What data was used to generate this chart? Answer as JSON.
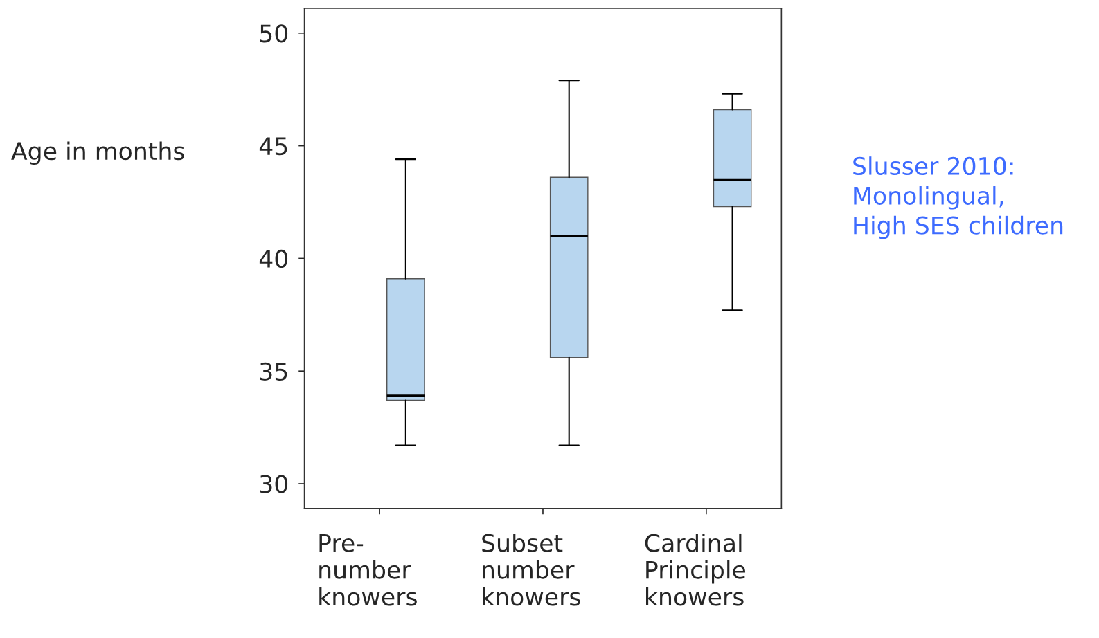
{
  "chart_data": {
    "type": "box",
    "ylabel": "Age in months",
    "categories": [
      "Pre-\nnumber\nknowers",
      "Subset\nnumber\nknowers",
      "Cardinal\nPrinciple\nknowers"
    ],
    "boxes": [
      {
        "low": 31.7,
        "q1": 33.7,
        "median": 33.9,
        "q3": 39.1,
        "high": 44.4
      },
      {
        "low": 31.7,
        "q1": 35.6,
        "median": 41.0,
        "q3": 43.6,
        "high": 47.9
      },
      {
        "low": 37.7,
        "q1": 42.3,
        "median": 43.5,
        "q3": 46.6,
        "high": 47.3
      }
    ],
    "color": "#b8d6ef",
    "ylim": [
      28.9,
      51.1
    ],
    "yticks": [
      30,
      35,
      40,
      45,
      50
    ],
    "grid": false,
    "annotations": [
      "Slusser 2010:\nMonolingual,\nHigh SES children"
    ]
  }
}
